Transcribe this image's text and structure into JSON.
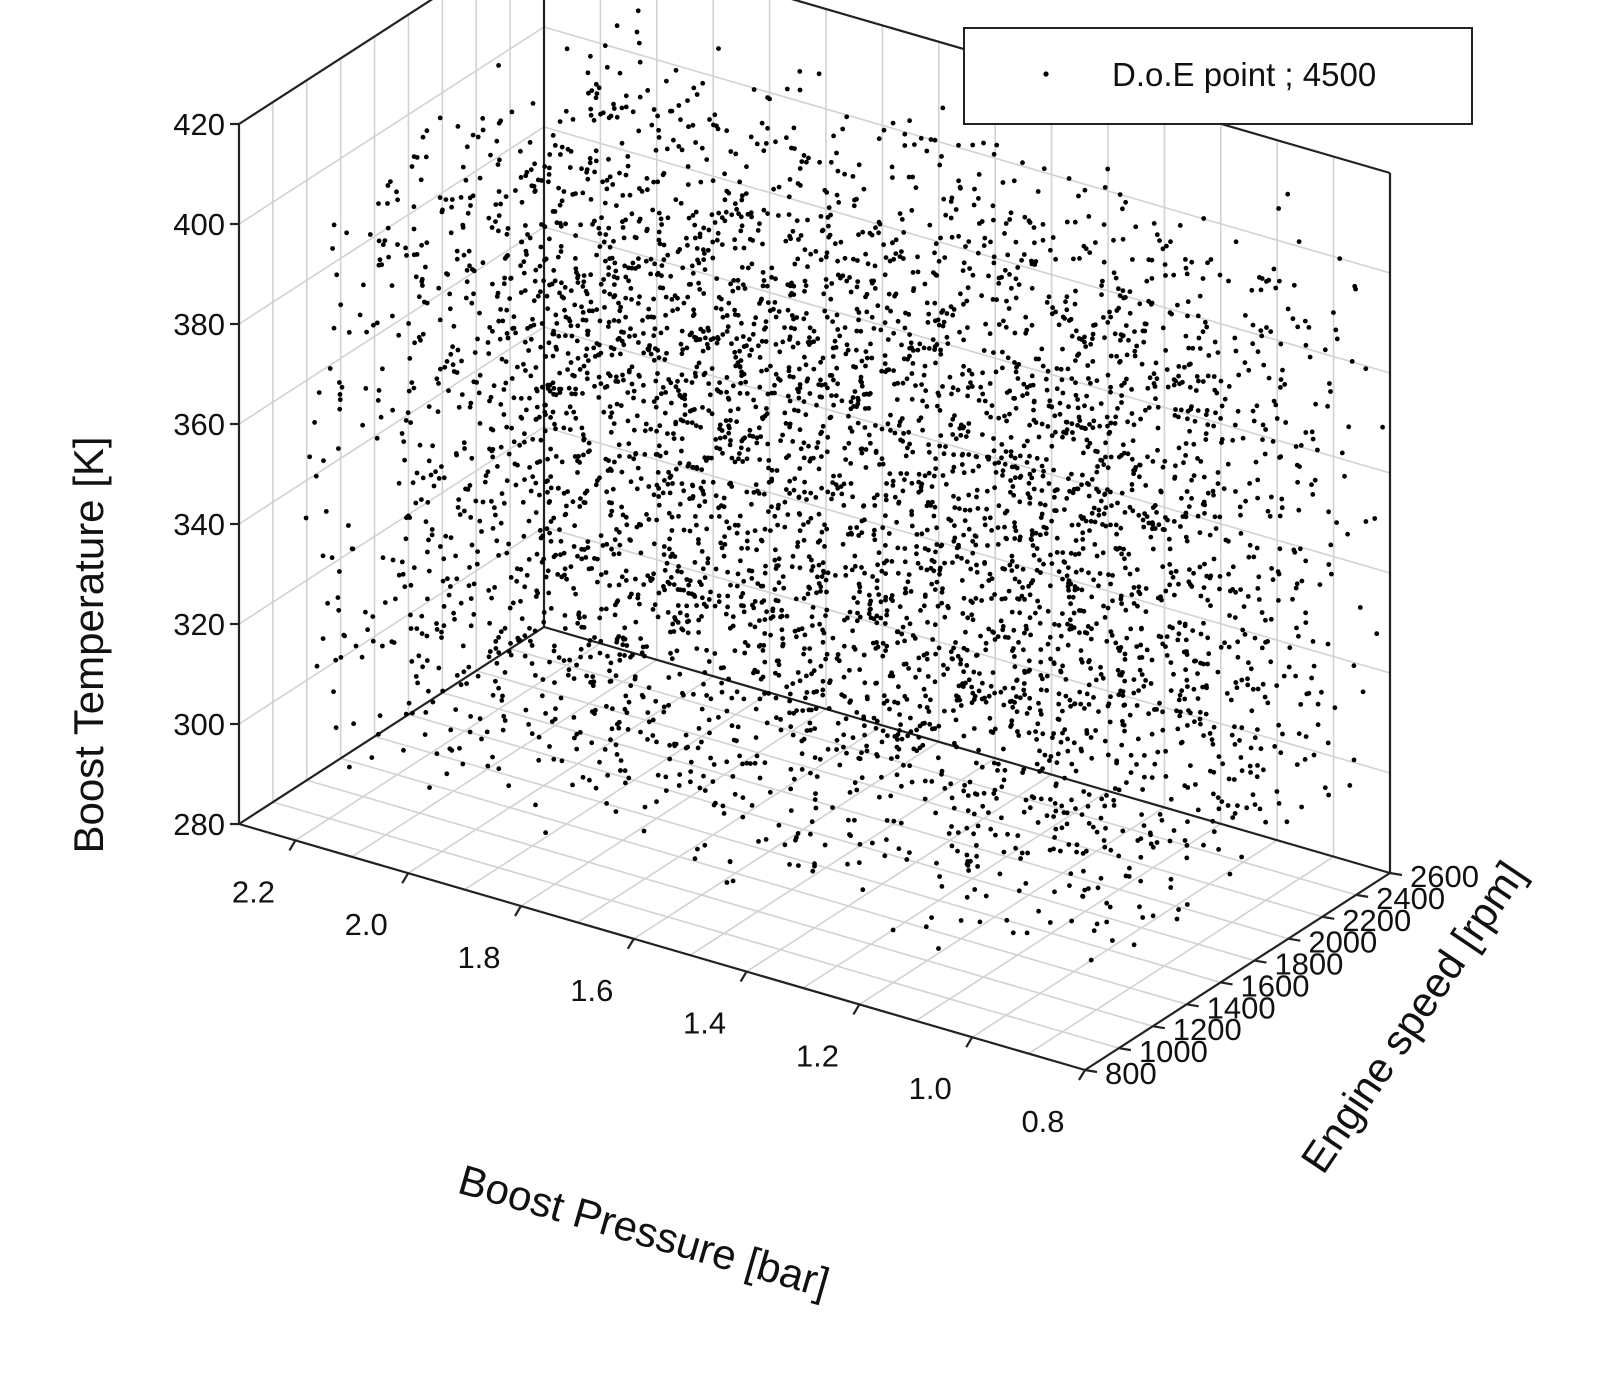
{
  "chart_data": {
    "type": "scatter",
    "subtype": "3d-scatter",
    "title": "",
    "x_axis": {
      "label": "Boost Pressure [bar]",
      "range": [
        0.8,
        2.3
      ],
      "ticks": [
        "0.8",
        "1.0",
        "1.2",
        "1.4",
        "1.6",
        "1.8",
        "2.0",
        "2.2"
      ],
      "tick_values": [
        0.8,
        1.0,
        1.2,
        1.4,
        1.6,
        1.8,
        2.0,
        2.2
      ],
      "reversed": true
    },
    "y_axis": {
      "label": "Engine speed [rpm]",
      "range": [
        800,
        2600
      ],
      "ticks": [
        "800",
        "1000",
        "1200",
        "1400",
        "1600",
        "1800",
        "2000",
        "2200",
        "2400",
        "2600"
      ],
      "tick_values": [
        800,
        1000,
        1200,
        1400,
        1600,
        1800,
        2000,
        2200,
        2400,
        2600
      ]
    },
    "z_axis": {
      "label": "Boost Temperature [K]",
      "range": [
        280,
        420
      ],
      "ticks": [
        "280",
        "300",
        "320",
        "340",
        "360",
        "380",
        "400",
        "420"
      ],
      "tick_values": [
        280,
        300,
        320,
        340,
        360,
        380,
        400,
        420
      ]
    },
    "grid": true,
    "legend": {
      "position": "top-right",
      "entries": [
        "D.o.E point ; 4500"
      ]
    },
    "series": [
      {
        "name": "D.o.E point ; 4500",
        "marker": "dot",
        "color": "#000000",
        "point_count": 4500,
        "distribution": "space-filling design of experiments, approximately uniform over the domain",
        "x_range": [
          0.8,
          2.2
        ],
        "y_range": [
          800,
          2600
        ],
        "z_range": [
          295,
          410
        ]
      }
    ]
  }
}
